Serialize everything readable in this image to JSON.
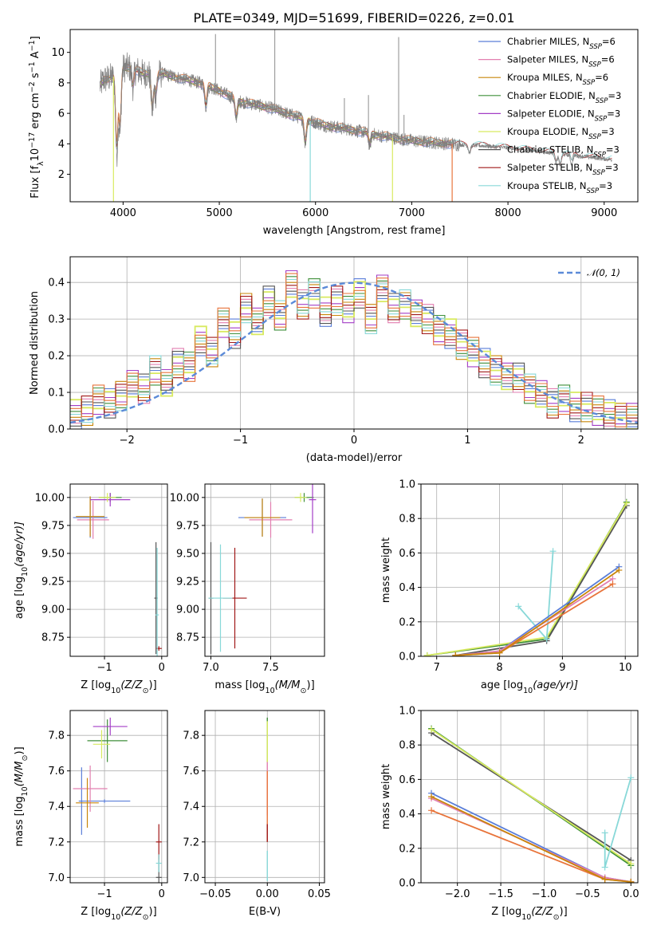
{
  "title": "PLATE=0349, MJD=51699, FIBERID=0226, z=0.01",
  "colors": {
    "Chabrier MILES": "#5a7ed8",
    "Salpeter MILES": "#e27fb0",
    "Kroupa MILES": "#c8860a",
    "Chabrier ELODIE": "#3f8f3a",
    "Salpeter ELODIE": "#a33ec6",
    "Kroupa ELODIE": "#d8ea60",
    "Chabrier STELIB": "#555555",
    "Salpeter STELIB": "#a01818",
    "Kroupa STELIB": "#88d8d8",
    "data": "#808080",
    "model_orange": "#e8743b",
    "normal": "#5b8ad8"
  },
  "chart_data": [
    {
      "type": "line",
      "id": "spectrum",
      "xlabel": "wavelength [Angstrom, rest frame]",
      "ylabel_parts": [
        "Flux [f",
        "λ",
        "10",
        "−17",
        " erg cm",
        "−2",
        " s",
        "−1",
        " A",
        "−1",
        "]"
      ],
      "xlim": [
        3450,
        9350
      ],
      "ylim": [
        0.2,
        11.5
      ],
      "xticks": [
        4000,
        5000,
        6000,
        7000,
        8000,
        9000
      ],
      "yticks": [
        2,
        4,
        6,
        8,
        10
      ],
      "legend_location": "upper-right",
      "legend": [
        {
          "label": "Chabrier MILES, N",
          "sub": "SSP",
          "tail": "=6",
          "color_key": "Chabrier MILES"
        },
        {
          "label": "Salpeter MILES, N",
          "sub": "SSP",
          "tail": "=6",
          "color_key": "Salpeter MILES"
        },
        {
          "label": "Kroupa MILES, N",
          "sub": "SSP",
          "tail": "=6",
          "color_key": "Kroupa MILES"
        },
        {
          "label": "Chabrier ELODIE, N",
          "sub": "SSP",
          "tail": "=3",
          "color_key": "Chabrier ELODIE"
        },
        {
          "label": "Salpeter ELODIE, N",
          "sub": "SSP",
          "tail": "=3",
          "color_key": "Salpeter ELODIE"
        },
        {
          "label": "Kroupa ELODIE, N",
          "sub": "SSP",
          "tail": "=3",
          "color_key": "Kroupa ELODIE"
        },
        {
          "label": "Chabrier STELIB, N",
          "sub": "SSP",
          "tail": "=3",
          "color_key": "Chabrier STELIB"
        },
        {
          "label": "Salpeter STELIB, N",
          "sub": "SSP",
          "tail": "=3",
          "color_key": "Salpeter STELIB"
        },
        {
          "label": "Kroupa STELIB, N",
          "sub": "SSP",
          "tail": "=3",
          "color_key": "Kroupa STELIB"
        }
      ],
      "data_trend": {
        "x": [
          3760,
          3800,
          3900,
          4000,
          4100,
          4200,
          4400,
          4600,
          4800,
          5000,
          5200,
          5500,
          5800,
          6100,
          6400,
          6700,
          7000,
          7300,
          7500,
          7800,
          8200,
          8600,
          9100
        ],
        "y": [
          7.8,
          8.2,
          8.4,
          9.0,
          9.0,
          8.6,
          8.6,
          8.3,
          8.0,
          7.5,
          6.8,
          6.4,
          5.8,
          5.2,
          4.9,
          4.5,
          4.2,
          4.05,
          3.95,
          3.85,
          3.6,
          3.3,
          2.95
        ]
      },
      "absorption_lines": [
        {
          "x": 3934,
          "depth": 5.2
        },
        {
          "x": 3968,
          "depth": 4.0
        },
        {
          "x": 4102,
          "depth": 1.2
        },
        {
          "x": 4304,
          "depth": 2.4
        },
        {
          "x": 4340,
          "depth": 1.3
        },
        {
          "x": 4861,
          "depth": 1.4
        },
        {
          "x": 5175,
          "depth": 1.2
        },
        {
          "x": 5893,
          "depth": 1.6
        },
        {
          "x": 6563,
          "depth": 0.8
        },
        {
          "x": 7600,
          "depth": 0.5
        },
        {
          "x": 8500,
          "depth": 0.6
        },
        {
          "x": 8542,
          "depth": 0.7
        },
        {
          "x": 8662,
          "depth": 0.6
        }
      ],
      "spikes": [
        {
          "x": 5577,
          "top": 11.5
        },
        {
          "x": 4960,
          "top": 11.2
        },
        {
          "x": 6300,
          "top": 7.0
        },
        {
          "x": 6864,
          "top": 11.0
        },
        {
          "x": 6920,
          "top": 5.9
        },
        {
          "x": 6550,
          "top": 7.2
        }
      ],
      "cutoffs": [
        {
          "x": 3900,
          "color_key": "Kroupa ELODIE"
        },
        {
          "x": 5945,
          "color_key": "Kroupa STELIB"
        },
        {
          "x": 6800,
          "color_key": "Kroupa ELODIE"
        },
        {
          "x": 7420,
          "color_key": "model_orange"
        }
      ],
      "model_end": 7420,
      "model_end_stelib": 9080
    },
    {
      "type": "area",
      "id": "residuals",
      "xlabel": "(data-model)/error",
      "ylabel": "Normed distribution",
      "xlim": [
        -2.5,
        2.5
      ],
      "ylim": [
        0,
        0.47
      ],
      "xticks": [
        -2,
        -1,
        0,
        1,
        2
      ],
      "yticks": [
        0.0,
        0.1,
        0.2,
        0.3,
        0.4
      ],
      "bin_edges": [
        -2.5,
        -2.4,
        -2.3,
        -2.2,
        -2.1,
        -2.0,
        -1.9,
        -1.8,
        -1.7,
        -1.6,
        -1.5,
        -1.4,
        -1.3,
        -1.2,
        -1.1,
        -1.0,
        -0.9,
        -0.8,
        -0.7,
        -0.6,
        -0.5,
        -0.4,
        -0.3,
        -0.2,
        -0.1,
        0.0,
        0.1,
        0.2,
        0.3,
        0.4,
        0.5,
        0.6,
        0.7,
        0.8,
        0.9,
        1.0,
        1.1,
        1.2,
        1.3,
        1.4,
        1.5,
        1.6,
        1.7,
        1.8,
        1.9,
        2.0,
        2.1,
        2.2,
        2.3,
        2.4,
        2.5
      ],
      "base_values": [
        0.04,
        0.05,
        0.08,
        0.07,
        0.09,
        0.12,
        0.11,
        0.16,
        0.13,
        0.18,
        0.17,
        0.24,
        0.21,
        0.29,
        0.26,
        0.33,
        0.29,
        0.35,
        0.31,
        0.4,
        0.34,
        0.37,
        0.32,
        0.35,
        0.33,
        0.37,
        0.3,
        0.38,
        0.33,
        0.34,
        0.32,
        0.3,
        0.27,
        0.26,
        0.23,
        0.21,
        0.18,
        0.16,
        0.14,
        0.14,
        0.11,
        0.1,
        0.07,
        0.08,
        0.06,
        0.06,
        0.05,
        0.04,
        0.03,
        0.03
      ],
      "legend": "𝒩(0, 1)"
    },
    {
      "type": "scatter",
      "id": "age_vs_Z",
      "xlabel_parts": [
        "Z [log",
        "10",
        "(Z/Z",
        "⊙",
        ")]"
      ],
      "ylabel_parts": [
        "age  [log",
        "10",
        "(age/yr)]"
      ],
      "xlim": [
        -1.6,
        0.1
      ],
      "ylim": [
        8.58,
        10.12
      ],
      "xticks": [
        -1,
        0
      ],
      "yticks": [
        8.75,
        9.0,
        9.25,
        9.5,
        9.75,
        10.0
      ],
      "crosses": [
        {
          "x": -1.25,
          "y": 9.82,
          "dx": 0.3,
          "dy": 0.18,
          "color_key": "Chabrier MILES"
        },
        {
          "x": -1.2,
          "y": 9.8,
          "dx": 0.28,
          "dy": 0.17,
          "color_key": "Salpeter MILES"
        },
        {
          "x": -1.25,
          "y": 9.83,
          "dx": 0.25,
          "dy": 0.18,
          "color_key": "Kroupa MILES"
        },
        {
          "x": -0.9,
          "y": 10.0,
          "dx": 0.2,
          "dy": 0.04,
          "color_key": "Chabrier ELODIE"
        },
        {
          "x": -0.9,
          "y": 9.98,
          "dx": 0.35,
          "dy": 0.06,
          "color_key": "Salpeter ELODIE"
        },
        {
          "x": -0.95,
          "y": 10.0,
          "dx": 0.15,
          "dy": 0.04,
          "color_key": "Kroupa ELODIE"
        },
        {
          "x": -0.1,
          "y": 9.1,
          "dx": 0.03,
          "dy": 0.5,
          "color_key": "Chabrier STELIB"
        },
        {
          "x": -0.05,
          "y": 8.65,
          "dx": 0.05,
          "dy": 0.02,
          "color_key": "Salpeter STELIB"
        },
        {
          "x": -0.08,
          "y": 8.95,
          "dx": 0.03,
          "dy": 0.6,
          "color_key": "Kroupa STELIB"
        }
      ]
    },
    {
      "type": "scatter",
      "id": "age_vs_mass",
      "xlabel_parts": [
        "mass [log",
        "10",
        "(M/M",
        "⊙",
        ")]"
      ],
      "xlim": [
        6.95,
        7.95
      ],
      "ylim": [
        8.58,
        10.12
      ],
      "xticks": [
        7.0,
        7.5
      ],
      "yticks": [
        8.75,
        9.0,
        9.25,
        9.5,
        9.75,
        10.0
      ],
      "crosses": [
        {
          "x": 7.43,
          "y": 9.82,
          "dx": 0.2,
          "dy": 0.17,
          "color_key": "Chabrier MILES"
        },
        {
          "x": 7.5,
          "y": 9.8,
          "dx": 0.18,
          "dy": 0.16,
          "color_key": "Salpeter MILES"
        },
        {
          "x": 7.43,
          "y": 9.82,
          "dx": 0.15,
          "dy": 0.17,
          "color_key": "Kroupa MILES"
        },
        {
          "x": 7.78,
          "y": 10.0,
          "dx": 0.08,
          "dy": 0.04,
          "color_key": "Chabrier ELODIE"
        },
        {
          "x": 7.85,
          "y": 9.98,
          "dx": 0.03,
          "dy": 0.3,
          "color_key": "Salpeter ELODIE"
        },
        {
          "x": 7.75,
          "y": 10.0,
          "dx": 0.05,
          "dy": 0.04,
          "color_key": "Kroupa ELODIE"
        },
        {
          "x": 7.0,
          "y": 9.1,
          "dx": 0.02,
          "dy": 0.5,
          "color_key": "Chabrier STELIB"
        },
        {
          "x": 7.2,
          "y": 9.1,
          "dx": 0.1,
          "dy": 0.45,
          "color_key": "Salpeter STELIB"
        },
        {
          "x": 7.08,
          "y": 9.1,
          "dx": 0.1,
          "dy": 0.48,
          "color_key": "Kroupa STELIB"
        }
      ]
    },
    {
      "type": "line",
      "id": "massweight_vs_age",
      "xlabel_parts": [
        "age  [log",
        "10",
        "(age/yr)]"
      ],
      "ylabel": "mass weight",
      "xlim": [
        6.75,
        10.2
      ],
      "ylim": [
        0,
        1.0
      ],
      "xticks": [
        7,
        8,
        9,
        10
      ],
      "yticks": [
        0.0,
        0.2,
        0.4,
        0.6,
        0.8,
        1.0
      ],
      "series": [
        {
          "color_key": "Chabrier ELODIE",
          "x": [
            6.85,
            8.75,
            10.02
          ],
          "y": [
            0.005,
            0.1,
            0.895
          ]
        },
        {
          "color_key": "Chabrier STELIB",
          "x": [
            7.3,
            8.75,
            10.02
          ],
          "y": [
            0.005,
            0.09,
            0.875
          ]
        },
        {
          "color_key": "Kroupa ELODIE",
          "x": [
            6.85,
            8.75,
            10.02
          ],
          "y": [
            0.005,
            0.11,
            0.89
          ]
        },
        {
          "color_key": "Kroupa STELIB",
          "x": [
            8.3,
            8.75,
            8.85
          ],
          "y": [
            0.29,
            0.1,
            0.61
          ]
        },
        {
          "color_key": "Chabrier MILES",
          "x": [
            7.3,
            8.0,
            9.9
          ],
          "y": [
            0.005,
            0.03,
            0.52
          ]
        },
        {
          "color_key": "Salpeter MILES",
          "x": [
            7.3,
            8.0,
            9.8
          ],
          "y": [
            0.005,
            0.03,
            0.45
          ]
        },
        {
          "color_key": "model_orange",
          "x": [
            7.3,
            8.0,
            9.8
          ],
          "y": [
            0.005,
            0.02,
            0.42
          ]
        },
        {
          "color_key": "Kroupa MILES",
          "x": [
            7.3,
            8.0,
            9.9
          ],
          "y": [
            0.005,
            0.02,
            0.5
          ]
        }
      ]
    },
    {
      "type": "scatter",
      "id": "mass_vs_Z",
      "xlabel_parts": [
        "Z [log",
        "10",
        "(Z/Z",
        "⊙",
        ")]"
      ],
      "ylabel_parts": [
        "mass [log",
        "10",
        "(M/M",
        "⊙",
        ")]"
      ],
      "xlim": [
        -1.6,
        0.1
      ],
      "ylim": [
        6.97,
        7.94
      ],
      "xticks": [
        -1,
        0
      ],
      "yticks": [
        7.0,
        7.2,
        7.4,
        7.6,
        7.8
      ],
      "crosses": [
        {
          "x": -1.4,
          "y": 7.43,
          "dx": 0.03,
          "dy": 0.19,
          "color_key": "Chabrier MILES"
        },
        {
          "x": -1.0,
          "y": 7.43,
          "dx": 0.45,
          "dy": 0.01,
          "color_key": "Chabrier MILES"
        },
        {
          "x": -1.25,
          "y": 7.5,
          "dx": 0.3,
          "dy": 0.13,
          "color_key": "Salpeter MILES"
        },
        {
          "x": -1.3,
          "y": 7.42,
          "dx": 0.2,
          "dy": 0.14,
          "color_key": "Kroupa MILES"
        },
        {
          "x": -0.95,
          "y": 7.77,
          "dx": 0.35,
          "dy": 0.12,
          "color_key": "Chabrier ELODIE"
        },
        {
          "x": -0.9,
          "y": 7.85,
          "dx": 0.3,
          "dy": 0.05,
          "color_key": "Salpeter ELODIE"
        },
        {
          "x": -1.05,
          "y": 7.75,
          "dx": 0.15,
          "dy": 0.08,
          "color_key": "Kroupa ELODIE"
        },
        {
          "x": -0.05,
          "y": 7.0,
          "dx": 0.05,
          "dy": 0.13,
          "color_key": "Chabrier STELIB"
        },
        {
          "x": -0.05,
          "y": 7.2,
          "dx": 0.05,
          "dy": 0.1,
          "color_key": "Salpeter STELIB"
        },
        {
          "x": -0.05,
          "y": 7.08,
          "dx": 0.05,
          "dy": 0.05,
          "color_key": "Kroupa STELIB"
        }
      ]
    },
    {
      "type": "scatter",
      "id": "mass_vs_ebv",
      "xlabel": "E(B-V)",
      "xlim": [
        -0.06,
        0.055
      ],
      "ylim": [
        6.97,
        7.94
      ],
      "xticks": [
        -0.05,
        0.0,
        0.05
      ],
      "xtick_labels": [
        "−0.05",
        "0.00",
        "0.05"
      ],
      "yticks": [
        7.0,
        7.2,
        7.4,
        7.6,
        7.8
      ],
      "segments": [
        {
          "color_key": "Chabrier ELODIE",
          "y0": 7.65,
          "y1": 7.9
        },
        {
          "color_key": "Kroupa ELODIE",
          "y0": 7.65,
          "y1": 7.88
        },
        {
          "color_key": "Salpeter MILES",
          "y0": 7.35,
          "y1": 7.65
        },
        {
          "color_key": "model_orange",
          "y0": 7.2,
          "y1": 7.6
        },
        {
          "color_key": "Salpeter STELIB",
          "y0": 7.2,
          "y1": 7.3
        },
        {
          "color_key": "Kroupa STELIB",
          "y0": 6.98,
          "y1": 7.15
        }
      ]
    },
    {
      "type": "line",
      "id": "massweight_vs_Z",
      "xlabel_parts": [
        "Z [log",
        "10",
        "(Z/Z",
        "⊙",
        ")]"
      ],
      "ylabel": "mass weight",
      "xlim": [
        -2.42,
        0.08
      ],
      "ylim": [
        0,
        1.0
      ],
      "xticks": [
        -2.0,
        -1.5,
        -1.0,
        -0.5,
        0.0
      ],
      "xtick_labels": [
        "−2.0",
        "−1.5",
        "−1.0",
        "−0.5",
        "0.0"
      ],
      "yticks": [
        0.0,
        0.2,
        0.4,
        0.6,
        0.8,
        1.0
      ],
      "series": [
        {
          "color_key": "Chabrier ELODIE",
          "x": [
            -2.3,
            0.0
          ],
          "y": [
            0.895,
            0.1
          ]
        },
        {
          "color_key": "Chabrier STELIB",
          "x": [
            -2.3,
            0.0
          ],
          "y": [
            0.87,
            0.13
          ]
        },
        {
          "color_key": "Kroupa ELODIE",
          "x": [
            -2.3,
            0.0
          ],
          "y": [
            0.89,
            0.11
          ]
        },
        {
          "color_key": "Kroupa STELIB",
          "x": [
            -0.3,
            -0.3,
            0.0
          ],
          "y": [
            0.29,
            0.09,
            0.61
          ]
        },
        {
          "color_key": "Chabrier MILES",
          "x": [
            -2.3,
            -0.3,
            0.0
          ],
          "y": [
            0.52,
            0.03,
            0.005
          ]
        },
        {
          "color_key": "Salpeter MILES",
          "x": [
            -2.3,
            -0.3,
            0.0
          ],
          "y": [
            0.49,
            0.03,
            0.005
          ]
        },
        {
          "color_key": "model_orange",
          "x": [
            -2.3,
            -0.3,
            0.0
          ],
          "y": [
            0.42,
            0.02,
            0.005
          ]
        },
        {
          "color_key": "Kroupa MILES",
          "x": [
            -2.3,
            -0.3,
            0.0
          ],
          "y": [
            0.5,
            0.02,
            0.005
          ]
        }
      ]
    }
  ]
}
